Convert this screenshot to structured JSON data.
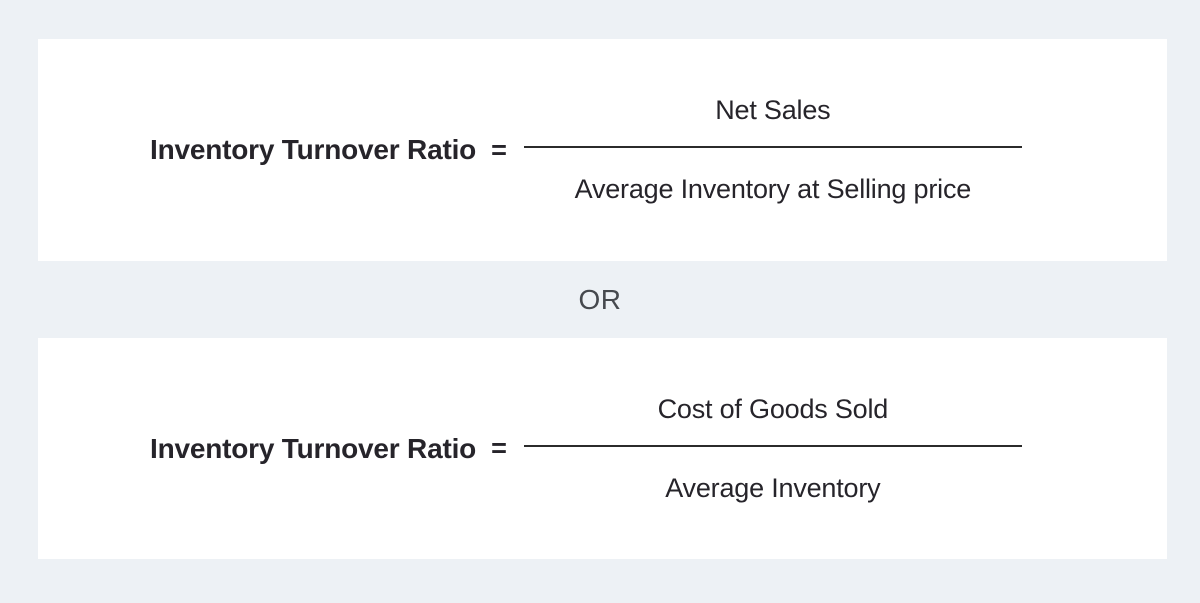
{
  "page": {
    "background_color": "#edf1f5",
    "card_color": "#ffffff",
    "text_color": "#26242a",
    "divider_color": "#2b2b2b",
    "or_color": "#46494e"
  },
  "separator": {
    "label": "OR"
  },
  "formulas": [
    {
      "label": "Inventory Turnover Ratio",
      "equals_sign": "=",
      "numerator": "Net Sales",
      "denominator": "Average Inventory at Selling price"
    },
    {
      "label": "Inventory Turnover Ratio",
      "equals_sign": "=",
      "numerator": "Cost of Goods Sold",
      "denominator": "Average Inventory"
    }
  ]
}
